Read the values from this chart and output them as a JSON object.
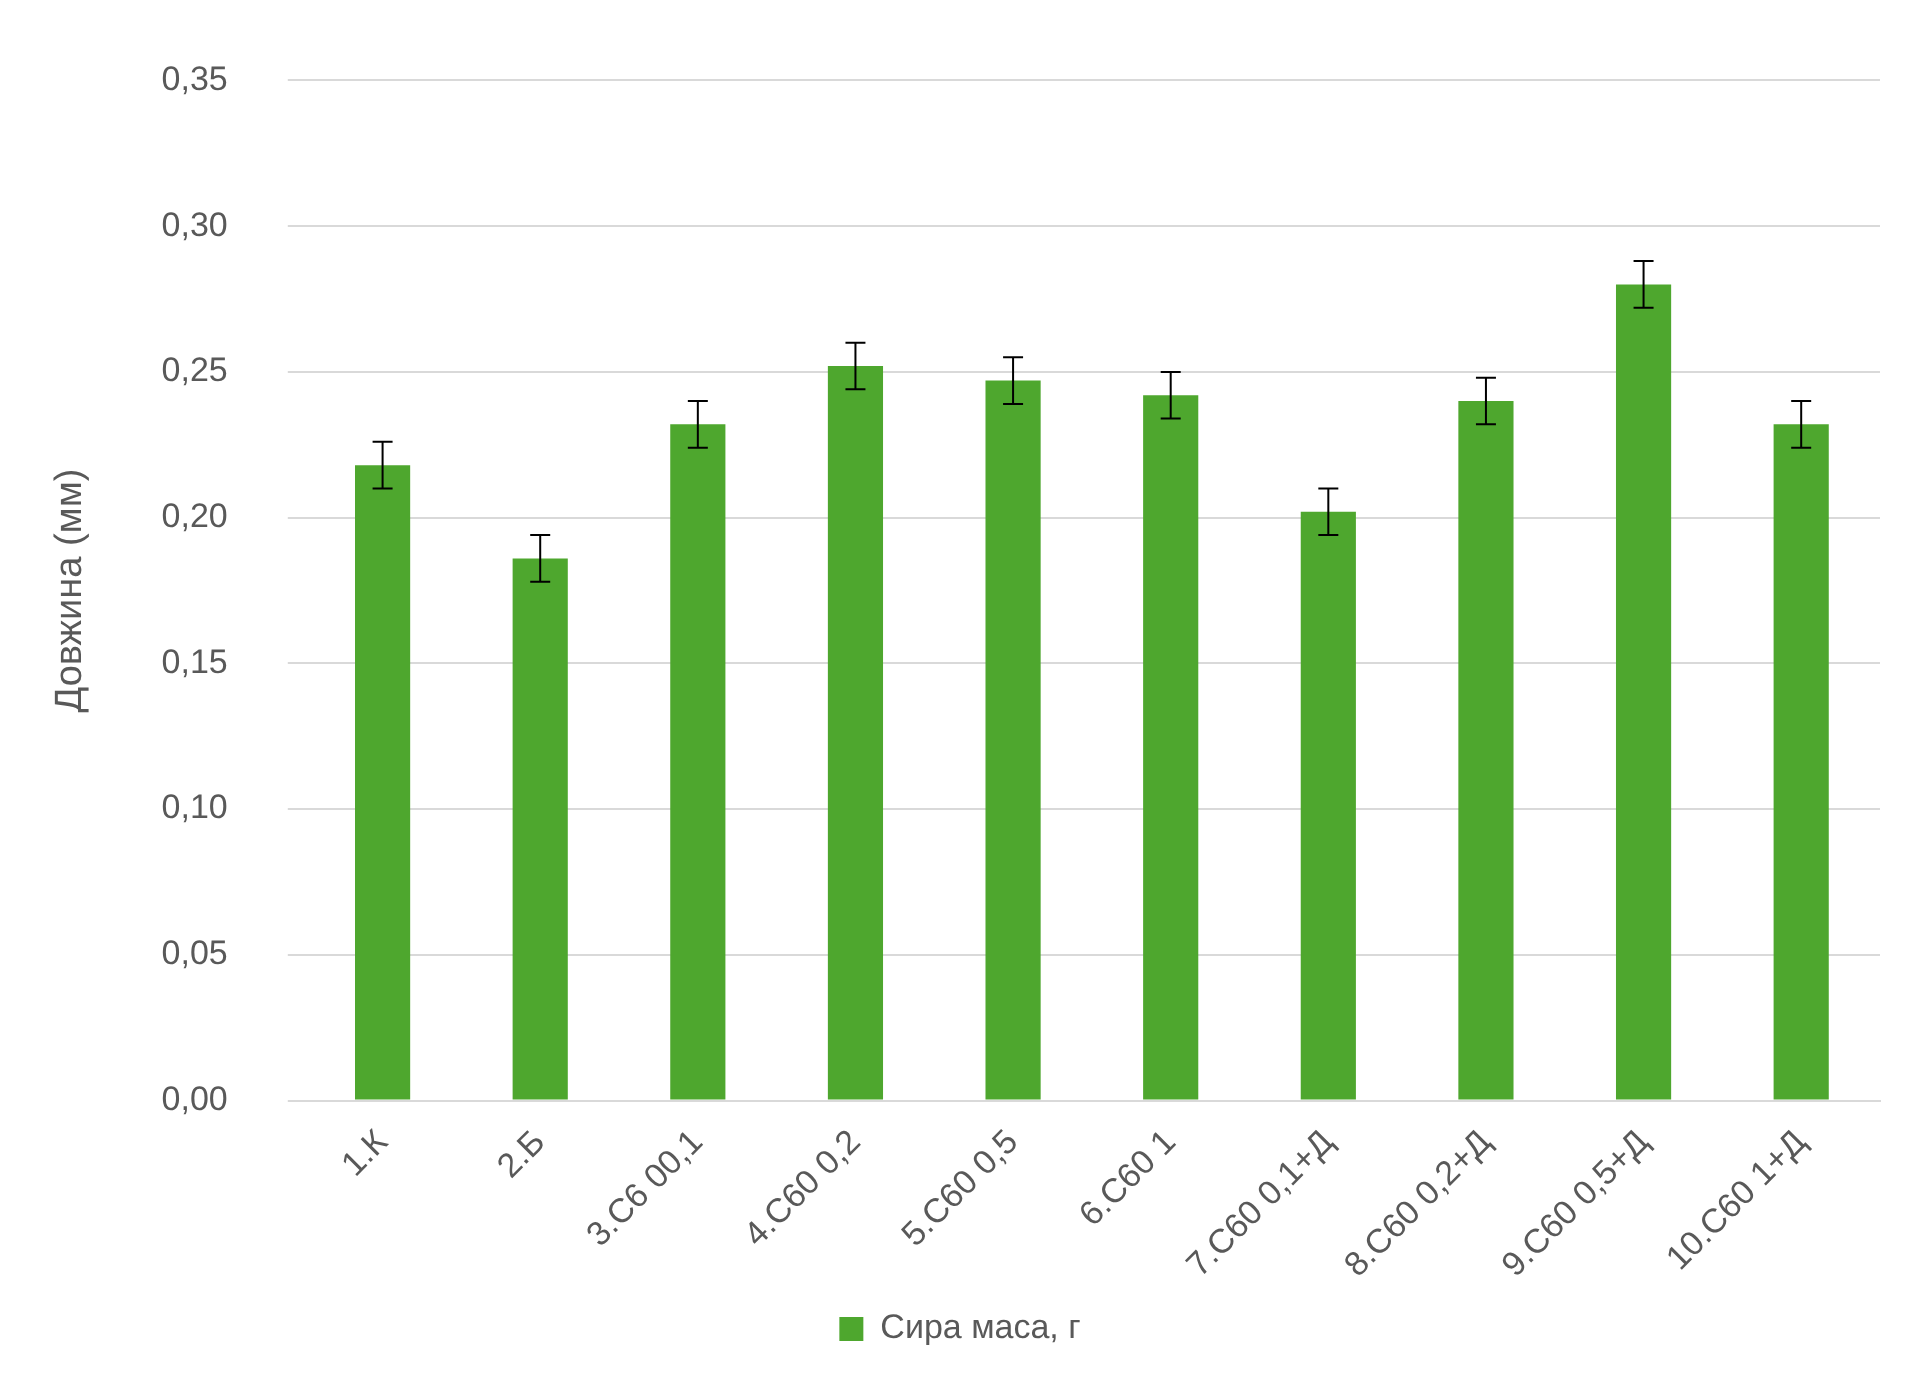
{
  "chart_data": {
    "type": "bar",
    "ylabel": "Довжина (мм)",
    "categories": [
      "1.К",
      "2.Б",
      "3.С6 00,1",
      "4.С60 0,2",
      "5.С60 0,5",
      "6.С60 1",
      "7.С60 0,1+Д",
      "8.С60 0,2+Д",
      "9.С60 0,5+Д",
      "10.С60 1+Д"
    ],
    "series": [
      {
        "name": "Сира маса, г",
        "color": "#4ea72e",
        "values": [
          0.218,
          0.186,
          0.232,
          0.252,
          0.247,
          0.242,
          0.202,
          0.24,
          0.28,
          0.232
        ],
        "errors": [
          0.008,
          0.008,
          0.008,
          0.008,
          0.008,
          0.008,
          0.008,
          0.008,
          0.008,
          0.008
        ]
      }
    ],
    "ylim": [
      0,
      0.35
    ],
    "yticks": [
      {
        "value": 0,
        "label": "0,00"
      },
      {
        "value": 0.05,
        "label": "0,05"
      },
      {
        "value": 0.1,
        "label": "0,10"
      },
      {
        "value": 0.15,
        "label": "0,15"
      },
      {
        "value": 0.2,
        "label": "0,20"
      },
      {
        "value": 0.25,
        "label": "0,25"
      },
      {
        "value": 0.3,
        "label": "0,30"
      },
      {
        "value": 0.35,
        "label": "0,35"
      }
    ],
    "grid": "y",
    "legend": "bottom"
  }
}
